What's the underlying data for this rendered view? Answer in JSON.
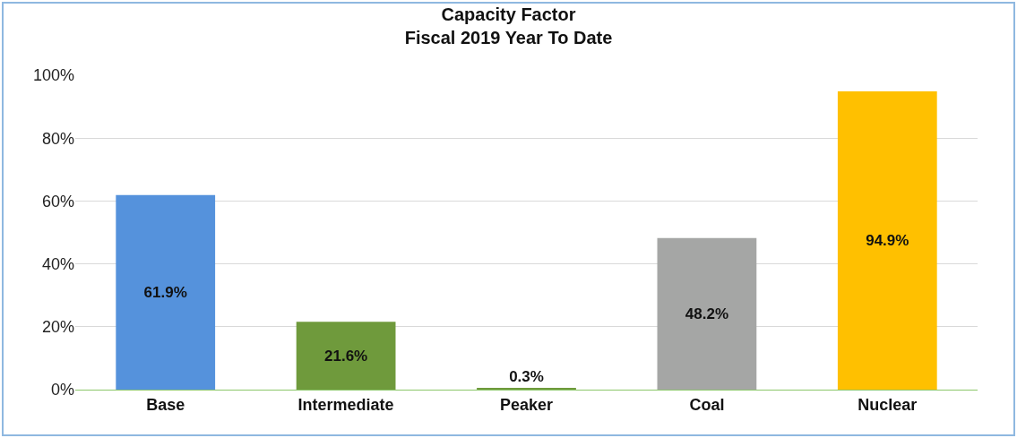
{
  "chart_data": {
    "type": "bar",
    "title": "Capacity Factor\nFiscal 2019 Year To Date",
    "categories": [
      "Base",
      "Intermediate",
      "Peaker",
      "Coal",
      "Nuclear"
    ],
    "values": [
      61.9,
      21.6,
      0.3,
      48.2,
      94.9
    ],
    "colors": [
      "#5592dc",
      "#6f9a3c",
      "#6f9a3c",
      "#a5a6a5",
      "#ffc000"
    ],
    "value_labels": [
      "61.9%",
      "21.6%",
      "0.3%",
      "48.2%",
      "94.9%"
    ],
    "ylim": [
      0,
      100
    ],
    "yticks": [
      {
        "value": 0,
        "label": "0%"
      },
      {
        "value": 20,
        "label": "20%"
      },
      {
        "value": 40,
        "label": "40%"
      },
      {
        "value": 60,
        "label": "60%"
      },
      {
        "value": 80,
        "label": "80%"
      },
      {
        "value": 100,
        "label": "100%"
      }
    ],
    "grid": "y"
  }
}
